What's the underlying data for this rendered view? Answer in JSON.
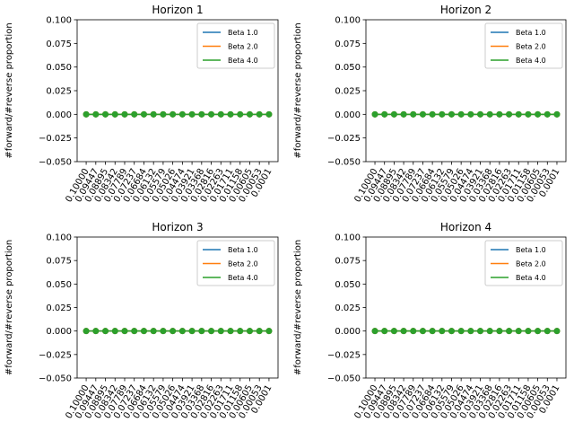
{
  "chart_data": [
    {
      "type": "line",
      "title": "Horizon 1",
      "ylabel": "#forward/#reverse proportion",
      "xlabel": "",
      "ylim": [
        -0.05,
        0.1
      ],
      "yticks": [
        "−0.050",
        "−0.025",
        "0.000",
        "0.025",
        "0.050",
        "0.075",
        "0.100"
      ],
      "ytick_values": [
        -0.05,
        -0.025,
        0.0,
        0.025,
        0.05,
        0.075,
        0.1
      ],
      "categories": [
        "0.10000",
        "0.09447",
        "0.08895",
        "0.08342",
        "0.07789",
        "0.07237",
        "0.06684",
        "0.06132",
        "0.05579",
        "0.05026",
        "0.04474",
        "0.03921",
        "0.03368",
        "0.02816",
        "0.02263",
        "0.01711",
        "0.01158",
        "0.00605",
        "0.00053",
        "0.0001"
      ],
      "legend": {
        "placement": "upper-right"
      },
      "series": [
        {
          "name": "Beta 1.0",
          "color": "#1f77b4",
          "values": [
            0,
            0,
            0,
            0,
            0,
            0,
            0,
            0,
            0,
            0,
            0,
            0,
            0,
            0,
            0,
            0,
            0,
            0,
            0,
            0
          ]
        },
        {
          "name": "Beta 2.0",
          "color": "#ff7f0e",
          "values": [
            0,
            0,
            0,
            0,
            0,
            0,
            0,
            0,
            0,
            0,
            0,
            0,
            0,
            0,
            0,
            0,
            0,
            0,
            0,
            0
          ]
        },
        {
          "name": "Beta 4.0",
          "color": "#2ca02c",
          "values": [
            0,
            0,
            0,
            0,
            0,
            0,
            0,
            0,
            0,
            0,
            0,
            0,
            0,
            0,
            0,
            0,
            0,
            0,
            0,
            0
          ]
        }
      ]
    },
    {
      "type": "line",
      "title": "Horizon 2",
      "ylabel": "#forward/#reverse proportion",
      "xlabel": "",
      "ylim": [
        -0.05,
        0.1
      ],
      "yticks": [
        "−0.050",
        "−0.025",
        "0.000",
        "0.025",
        "0.050",
        "0.075",
        "0.100"
      ],
      "ytick_values": [
        -0.05,
        -0.025,
        0.0,
        0.025,
        0.05,
        0.075,
        0.1
      ],
      "categories": [
        "0.10000",
        "0.09447",
        "0.08895",
        "0.08342",
        "0.07789",
        "0.07237",
        "0.06684",
        "0.06132",
        "0.05579",
        "0.05026",
        "0.04474",
        "0.03921",
        "0.03368",
        "0.02816",
        "0.02263",
        "0.01711",
        "0.01158",
        "0.00605",
        "0.00053",
        "0.0001"
      ],
      "legend": {
        "placement": "upper-right"
      },
      "series": [
        {
          "name": "Beta 1.0",
          "color": "#1f77b4",
          "values": [
            0,
            0,
            0,
            0,
            0,
            0,
            0,
            0,
            0,
            0,
            0,
            0,
            0,
            0,
            0,
            0,
            0,
            0,
            0,
            0
          ]
        },
        {
          "name": "Beta 2.0",
          "color": "#ff7f0e",
          "values": [
            0,
            0,
            0,
            0,
            0,
            0,
            0,
            0,
            0,
            0,
            0,
            0,
            0,
            0,
            0,
            0,
            0,
            0,
            0,
            0
          ]
        },
        {
          "name": "Beta 4.0",
          "color": "#2ca02c",
          "values": [
            0,
            0,
            0,
            0,
            0,
            0,
            0,
            0,
            0,
            0,
            0,
            0,
            0,
            0,
            0,
            0,
            0,
            0,
            0,
            0
          ]
        }
      ]
    },
    {
      "type": "line",
      "title": "Horizon 3",
      "ylabel": "#forward/#reverse proportion",
      "xlabel": "",
      "ylim": [
        -0.05,
        0.1
      ],
      "yticks": [
        "−0.050",
        "−0.025",
        "0.000",
        "0.025",
        "0.050",
        "0.075",
        "0.100"
      ],
      "ytick_values": [
        -0.05,
        -0.025,
        0.0,
        0.025,
        0.05,
        0.075,
        0.1
      ],
      "categories": [
        "0.10000",
        "0.09447",
        "0.08895",
        "0.08342",
        "0.07789",
        "0.07237",
        "0.06684",
        "0.06132",
        "0.05579",
        "0.05026",
        "0.04474",
        "0.03921",
        "0.03368",
        "0.02816",
        "0.02263",
        "0.01711",
        "0.01158",
        "0.00605",
        "0.00053",
        "0.0001"
      ],
      "legend": {
        "placement": "upper-right"
      },
      "series": [
        {
          "name": "Beta 1.0",
          "color": "#1f77b4",
          "values": [
            0,
            0,
            0,
            0,
            0,
            0,
            0,
            0,
            0,
            0,
            0,
            0,
            0,
            0,
            0,
            0,
            0,
            0,
            0,
            0
          ]
        },
        {
          "name": "Beta 2.0",
          "color": "#ff7f0e",
          "values": [
            0,
            0,
            0,
            0,
            0,
            0,
            0,
            0,
            0,
            0,
            0,
            0,
            0,
            0,
            0,
            0,
            0,
            0,
            0,
            0
          ]
        },
        {
          "name": "Beta 4.0",
          "color": "#2ca02c",
          "values": [
            0,
            0,
            0,
            0,
            0,
            0,
            0,
            0,
            0,
            0,
            0,
            0,
            0,
            0,
            0,
            0,
            0,
            0,
            0,
            0
          ]
        }
      ]
    },
    {
      "type": "line",
      "title": "Horizon 4",
      "ylabel": "#forward/#reverse proportion",
      "xlabel": "",
      "ylim": [
        -0.05,
        0.1
      ],
      "yticks": [
        "−0.050",
        "−0.025",
        "0.000",
        "0.025",
        "0.050",
        "0.075",
        "0.100"
      ],
      "ytick_values": [
        -0.05,
        -0.025,
        0.0,
        0.025,
        0.05,
        0.075,
        0.1
      ],
      "categories": [
        "0.10000",
        "0.09447",
        "0.08895",
        "0.08342",
        "0.07789",
        "0.07237",
        "0.06684",
        "0.06132",
        "0.05579",
        "0.05026",
        "0.04474",
        "0.03921",
        "0.03368",
        "0.02816",
        "0.02263",
        "0.01711",
        "0.01158",
        "0.00605",
        "0.00053",
        "0.0001"
      ],
      "legend": {
        "placement": "upper-right"
      },
      "series": [
        {
          "name": "Beta 1.0",
          "color": "#1f77b4",
          "values": [
            0,
            0,
            0,
            0,
            0,
            0,
            0,
            0,
            0,
            0,
            0,
            0,
            0,
            0,
            0,
            0,
            0,
            0,
            0,
            0
          ]
        },
        {
          "name": "Beta 2.0",
          "color": "#ff7f0e",
          "values": [
            0,
            0,
            0,
            0,
            0,
            0,
            0,
            0,
            0,
            0,
            0,
            0,
            0,
            0,
            0,
            0,
            0,
            0,
            0,
            0
          ]
        },
        {
          "name": "Beta 4.0",
          "color": "#2ca02c",
          "values": [
            0,
            0,
            0,
            0,
            0,
            0,
            0,
            0,
            0,
            0,
            0,
            0,
            0,
            0,
            0,
            0,
            0,
            0,
            0,
            0
          ]
        }
      ]
    }
  ]
}
